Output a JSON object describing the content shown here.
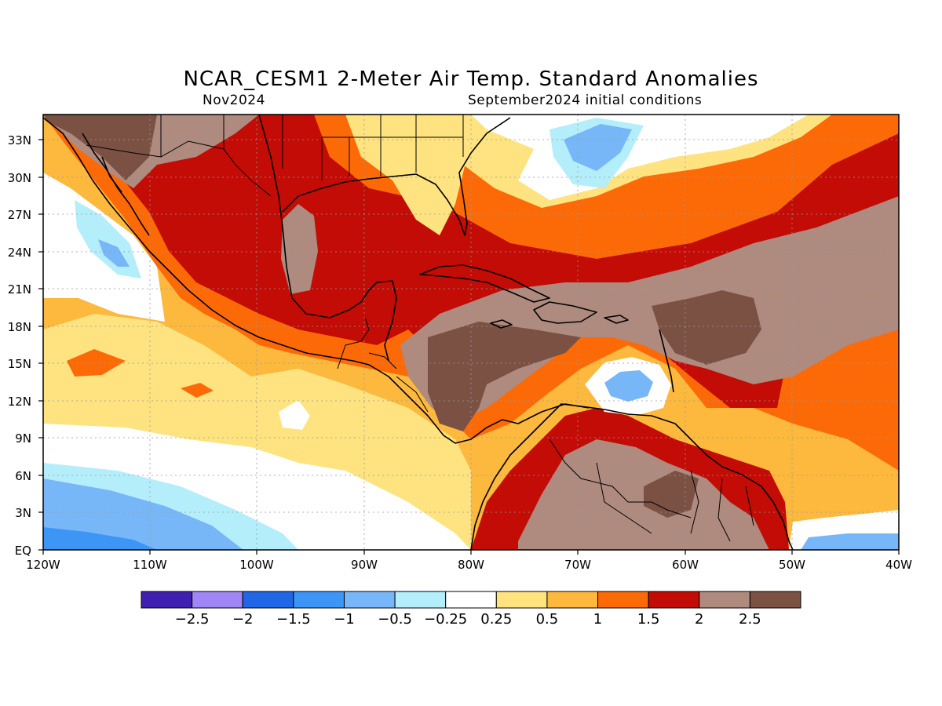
{
  "title": "NCAR_CESM1 2-Meter Air Temp. Standard Anomalies",
  "subtitle_left": "Nov2024",
  "subtitle_right": "September2024 initial conditions",
  "map": {
    "lat_labels": [
      "33N",
      "30N",
      "27N",
      "24N",
      "21N",
      "18N",
      "15N",
      "12N",
      "9N",
      "6N",
      "3N",
      "EQ"
    ],
    "lon_labels": [
      "120W",
      "110W",
      "100W",
      "90W",
      "80W",
      "70W",
      "60W",
      "50W",
      "40W"
    ],
    "grid": true
  },
  "colorbar": {
    "colors": [
      "#3f1fb0",
      "#9f86f4",
      "#2166e6",
      "#3d96f5",
      "#78b7f7",
      "#b4eefb",
      "#ffffff",
      "#fee380",
      "#fdb83e",
      "#fc6a08",
      "#c20c05",
      "#ae8a7f",
      "#7b5144"
    ],
    "labels": [
      "-2.5",
      "-2",
      "-1.5",
      "-1",
      "-0.5",
      "-0.25",
      "0.25",
      "0.5",
      "1",
      "1.5",
      "2",
      "2.5"
    ]
  }
}
